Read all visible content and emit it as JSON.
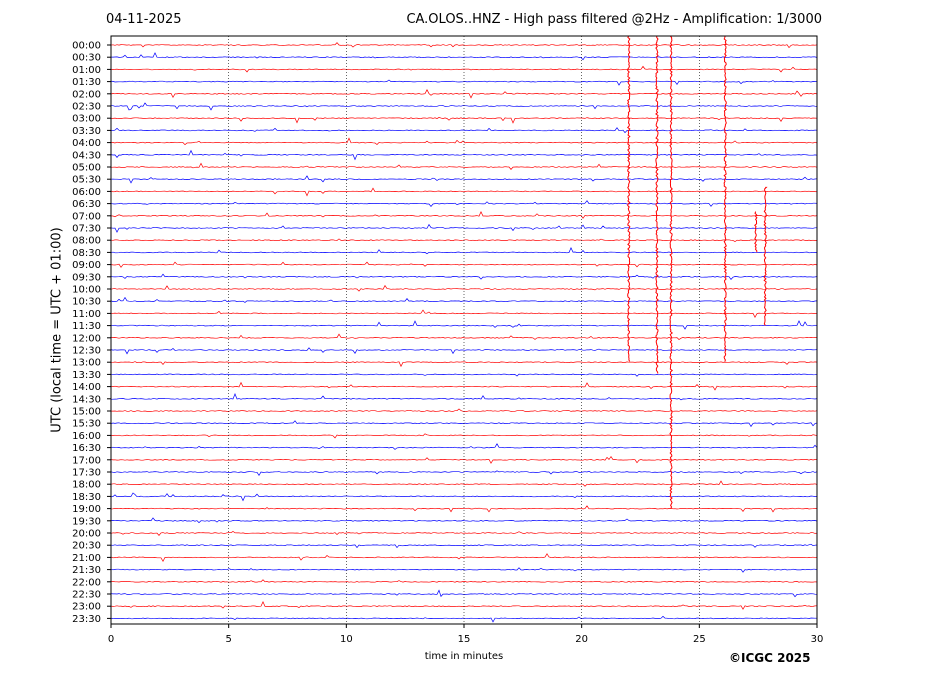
{
  "date": "04-11-2025",
  "title": "CA.OLOS..HNZ - High pass filtered @2Hz - Amplification: 1/3000",
  "copyright": "©ICGC 2025",
  "chart_data": {
    "type": "line",
    "xlabel": "time in minutes",
    "ylabel": "UTC (local time = UTC + 01:00)",
    "xlim": [
      0,
      30
    ],
    "x_ticks": [
      0,
      5,
      10,
      15,
      20,
      25,
      30
    ],
    "grid": "vertical dotted lines at 5-minute ticks",
    "rows": [
      "00:00",
      "00:30",
      "01:00",
      "01:30",
      "02:00",
      "02:30",
      "03:00",
      "03:30",
      "04:00",
      "04:30",
      "05:00",
      "05:30",
      "06:00",
      "06:30",
      "07:00",
      "07:30",
      "08:00",
      "08:30",
      "09:00",
      "09:30",
      "10:00",
      "10:30",
      "11:00",
      "11:30",
      "12:00",
      "12:30",
      "13:00",
      "13:30",
      "14:00",
      "14:30",
      "15:00",
      "15:30",
      "16:00",
      "16:30",
      "17:00",
      "17:30",
      "18:00",
      "18:30",
      "19:00",
      "19:30",
      "20:00",
      "20:30",
      "21:00",
      "21:30",
      "22:00",
      "22:30",
      "23:00",
      "23:30"
    ],
    "series_colors": [
      "#ff0000",
      "#0000ff"
    ],
    "color_pattern": "alternating red / blue per row",
    "events": [
      {
        "row": "04:30",
        "start_min": 22.0,
        "rows_span": 17,
        "amplitude": "very high"
      },
      {
        "row": "04:30",
        "start_min": 23.2,
        "rows_span": 18,
        "amplitude": "very high"
      },
      {
        "row": "04:00",
        "start_min": 23.8,
        "rows_span": 30,
        "amplitude": "very high"
      },
      {
        "row": "04:30",
        "start_min": 26.1,
        "rows_span": 17,
        "amplitude": "very high"
      },
      {
        "row": "07:00",
        "start_min": 27.4,
        "rows_span": 3,
        "amplitude": "high"
      },
      {
        "row": "06:00",
        "start_min": 27.8,
        "rows_span": 11,
        "amplitude": "high"
      }
    ]
  }
}
